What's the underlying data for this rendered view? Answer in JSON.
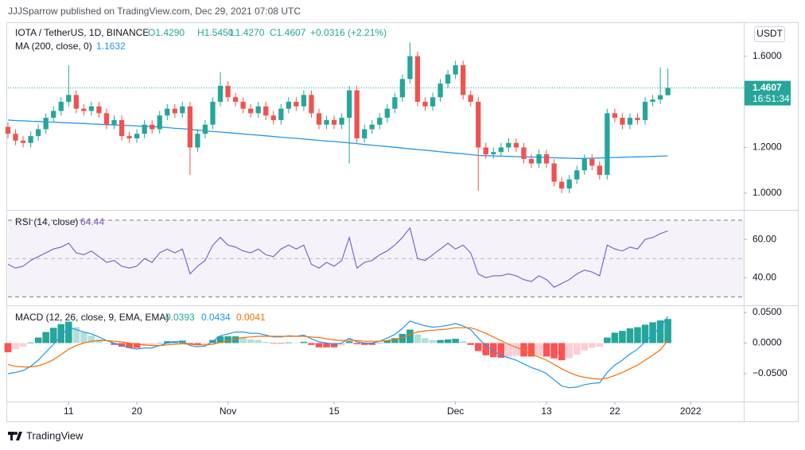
{
  "header": {
    "publisher": "JJJSparrow published on TradingView.com, Dec 29, 2021 07:08 UTC",
    "currency_button": "USDT",
    "footer_brand": "TradingView"
  },
  "chart_data": {
    "type": "candlestick",
    "symbol": "IOTA / TetherUS, 1D, BINANCE",
    "legend_values": [
      "O1.4290",
      "H1.5450",
      "L1.4270",
      "C1.4607",
      "+0.0316 (+2.21%)"
    ],
    "up_color": "#26a69a",
    "down_color": "#ef5350",
    "x": [
      "2021-10-03",
      "2021-10-04",
      "2021-10-05",
      "2021-10-06",
      "2021-10-07",
      "2021-10-08",
      "2021-10-09",
      "2021-10-10",
      "2021-10-11",
      "2021-10-12",
      "2021-10-13",
      "2021-10-14",
      "2021-10-15",
      "2021-10-16",
      "2021-10-17",
      "2021-10-18",
      "2021-10-19",
      "2021-10-20",
      "2021-10-21",
      "2021-10-22",
      "2021-10-23",
      "2021-10-24",
      "2021-10-25",
      "2021-10-26",
      "2021-10-27",
      "2021-10-28",
      "2021-10-29",
      "2021-10-30",
      "2021-10-31",
      "2021-11-01",
      "2021-11-02",
      "2021-11-03",
      "2021-11-04",
      "2021-11-05",
      "2021-11-06",
      "2021-11-07",
      "2021-11-08",
      "2021-11-09",
      "2021-11-10",
      "2021-11-11",
      "2021-11-12",
      "2021-11-13",
      "2021-11-14",
      "2021-11-15",
      "2021-11-16",
      "2021-11-17",
      "2021-11-18",
      "2021-11-19",
      "2021-11-20",
      "2021-11-21",
      "2021-11-22",
      "2021-11-23",
      "2021-11-24",
      "2021-11-25",
      "2021-11-26",
      "2021-11-27",
      "2021-11-28",
      "2021-11-29",
      "2021-11-30",
      "2021-12-01",
      "2021-12-02",
      "2021-12-03",
      "2021-12-04",
      "2021-12-05",
      "2021-12-06",
      "2021-12-07",
      "2021-12-08",
      "2021-12-09",
      "2021-12-10",
      "2021-12-11",
      "2021-12-12",
      "2021-12-13",
      "2021-12-14",
      "2021-12-15",
      "2021-12-16",
      "2021-12-17",
      "2021-12-18",
      "2021-12-19",
      "2021-12-20",
      "2021-12-21",
      "2021-12-22",
      "2021-12-23",
      "2021-12-24",
      "2021-12-25",
      "2021-12-26",
      "2021-12-27",
      "2021-12-28",
      "2021-12-29"
    ],
    "open": [
      1.29,
      1.26,
      1.23,
      1.22,
      1.25,
      1.28,
      1.33,
      1.36,
      1.4,
      1.43,
      1.37,
      1.36,
      1.38,
      1.35,
      1.3,
      1.32,
      1.25,
      1.24,
      1.26,
      1.3,
      1.28,
      1.34,
      1.37,
      1.35,
      1.38,
      1.2,
      1.26,
      1.3,
      1.4,
      1.47,
      1.42,
      1.4,
      1.37,
      1.35,
      1.38,
      1.34,
      1.32,
      1.37,
      1.4,
      1.38,
      1.43,
      1.35,
      1.3,
      1.32,
      1.3,
      1.33,
      1.45,
      1.24,
      1.28,
      1.3,
      1.33,
      1.37,
      1.42,
      1.5,
      1.6,
      1.4,
      1.38,
      1.42,
      1.48,
      1.52,
      1.56,
      1.43,
      1.4,
      1.2,
      1.17,
      1.18,
      1.2,
      1.22,
      1.2,
      1.15,
      1.13,
      1.17,
      1.13,
      1.05,
      1.02,
      1.06,
      1.1,
      1.15,
      1.12,
      1.08,
      1.35,
      1.33,
      1.3,
      1.33,
      1.32,
      1.4,
      1.41,
      1.429
    ],
    "high": [
      1.31,
      1.28,
      1.25,
      1.27,
      1.3,
      1.35,
      1.38,
      1.42,
      1.56,
      1.45,
      1.39,
      1.4,
      1.4,
      1.37,
      1.34,
      1.34,
      1.27,
      1.28,
      1.32,
      1.32,
      1.36,
      1.39,
      1.39,
      1.4,
      1.4,
      1.28,
      1.32,
      1.42,
      1.53,
      1.49,
      1.44,
      1.42,
      1.39,
      1.4,
      1.4,
      1.36,
      1.39,
      1.42,
      1.42,
      1.45,
      1.45,
      1.37,
      1.34,
      1.34,
      1.35,
      1.47,
      1.47,
      1.3,
      1.32,
      1.35,
      1.39,
      1.44,
      1.52,
      1.66,
      1.62,
      1.42,
      1.44,
      1.5,
      1.54,
      1.58,
      1.58,
      1.45,
      1.42,
      1.22,
      1.2,
      1.22,
      1.24,
      1.24,
      1.22,
      1.17,
      1.19,
      1.19,
      1.15,
      1.07,
      1.08,
      1.12,
      1.17,
      1.17,
      1.14,
      1.37,
      1.37,
      1.35,
      1.35,
      1.35,
      1.42,
      1.43,
      1.55,
      1.545
    ],
    "low": [
      1.24,
      1.21,
      1.2,
      1.2,
      1.23,
      1.26,
      1.31,
      1.34,
      1.38,
      1.35,
      1.34,
      1.34,
      1.33,
      1.28,
      1.28,
      1.23,
      1.22,
      1.22,
      1.24,
      1.26,
      1.26,
      1.32,
      1.33,
      1.33,
      1.08,
      1.18,
      1.24,
      1.28,
      1.38,
      1.4,
      1.38,
      1.35,
      1.33,
      1.33,
      1.32,
      1.3,
      1.3,
      1.35,
      1.36,
      1.36,
      1.33,
      1.28,
      1.28,
      1.28,
      1.28,
      1.13,
      1.22,
      1.22,
      1.26,
      1.28,
      1.31,
      1.35,
      1.4,
      1.48,
      1.38,
      1.36,
      1.36,
      1.4,
      1.46,
      1.5,
      1.41,
      1.38,
      1.01,
      1.15,
      1.15,
      1.16,
      1.18,
      1.18,
      1.13,
      1.11,
      1.11,
      1.11,
      1.03,
      1.0,
      1.0,
      1.04,
      1.08,
      1.1,
      1.06,
      1.06,
      1.31,
      1.28,
      1.28,
      1.3,
      1.3,
      1.38,
      1.39,
      1.427
    ],
    "close": [
      1.26,
      1.23,
      1.22,
      1.25,
      1.28,
      1.33,
      1.36,
      1.4,
      1.43,
      1.37,
      1.36,
      1.38,
      1.35,
      1.3,
      1.32,
      1.25,
      1.24,
      1.26,
      1.3,
      1.28,
      1.34,
      1.37,
      1.35,
      1.38,
      1.2,
      1.26,
      1.3,
      1.4,
      1.47,
      1.42,
      1.4,
      1.37,
      1.35,
      1.38,
      1.34,
      1.32,
      1.37,
      1.4,
      1.38,
      1.43,
      1.35,
      1.3,
      1.32,
      1.3,
      1.33,
      1.45,
      1.24,
      1.28,
      1.3,
      1.33,
      1.37,
      1.42,
      1.5,
      1.6,
      1.4,
      1.38,
      1.42,
      1.48,
      1.52,
      1.56,
      1.43,
      1.4,
      1.2,
      1.17,
      1.18,
      1.2,
      1.22,
      1.2,
      1.15,
      1.13,
      1.17,
      1.13,
      1.05,
      1.02,
      1.06,
      1.1,
      1.15,
      1.12,
      1.08,
      1.35,
      1.33,
      1.3,
      1.33,
      1.32,
      1.4,
      1.41,
      1.429,
      1.4607
    ],
    "xlim": [
      "2021-10-03",
      "2022-01-08"
    ],
    "xticks": [
      {
        "value": "2021-10-11",
        "label": "11"
      },
      {
        "value": "2021-10-20",
        "label": "20"
      },
      {
        "value": "2021-11-01",
        "label": "Nov"
      },
      {
        "value": "2021-11-15",
        "label": "15"
      },
      {
        "value": "2021-12-01",
        "label": "Dec"
      },
      {
        "value": "2021-12-13",
        "label": "13"
      },
      {
        "value": "2021-12-22",
        "label": "22"
      },
      {
        "value": "2022-01-01",
        "label": "2022"
      }
    ],
    "ylim": [
      0.93,
      1.745
    ],
    "yticks": [
      {
        "value": 1.6,
        "label": "1.6000"
      },
      {
        "value": 1.2,
        "label": "1.2000"
      },
      {
        "value": 1.0,
        "label": "1.0000"
      }
    ],
    "last_price_label": "1.4607",
    "countdown": "16:51:34",
    "overlays": [
      {
        "name": "MA (200, close, 0)",
        "value_label": "1.1632",
        "color": "#2196f3",
        "values": [
          1.32,
          1.318,
          1.317,
          1.315,
          1.314,
          1.312,
          1.311,
          1.309,
          1.308,
          1.306,
          1.305,
          1.303,
          1.302,
          1.3,
          1.299,
          1.297,
          1.296,
          1.294,
          1.293,
          1.291,
          1.29,
          1.287,
          1.284,
          1.282,
          1.279,
          1.276,
          1.273,
          1.27,
          1.268,
          1.265,
          1.262,
          1.259,
          1.256,
          1.254,
          1.251,
          1.248,
          1.245,
          1.242,
          1.24,
          1.237,
          1.234,
          1.231,
          1.228,
          1.226,
          1.223,
          1.22,
          1.217,
          1.213,
          1.21,
          1.207,
          1.204,
          1.201,
          1.197,
          1.194,
          1.191,
          1.188,
          1.185,
          1.181,
          1.178,
          1.175,
          1.172,
          1.169,
          1.165,
          1.164,
          1.163,
          1.162,
          1.161,
          1.16,
          1.159,
          1.158,
          1.157,
          1.156,
          1.155,
          1.154,
          1.153,
          1.152,
          1.152,
          1.153,
          1.154,
          1.155,
          1.156,
          1.157,
          1.158,
          1.159,
          1.16,
          1.161,
          1.162,
          1.1632
        ]
      }
    ],
    "panes": [
      {
        "type": "line",
        "name": "RSI (14, close)",
        "ylim": [
          26,
          75
        ],
        "yticks": [
          {
            "value": 60,
            "label": "60.00"
          },
          {
            "value": 40,
            "label": "40.00"
          }
        ],
        "bands": [
          70,
          50,
          30
        ],
        "band_color": "#7e57c2",
        "series": [
          {
            "value_label": "64.44",
            "color": "#7e57c2",
            "values": [
              47,
              45,
              46,
              49,
              51,
              53,
              55,
              56,
              58,
              53,
              52,
              54,
              51,
              48,
              49,
              46,
              45,
              46,
              50,
              48,
              53,
              55,
              53,
              55,
              42,
              46,
              49,
              57,
              61,
              57,
              56,
              54,
              53,
              55,
              52,
              51,
              55,
              57,
              55,
              57,
              47,
              45,
              48,
              46,
              49,
              61,
              45,
              48,
              49,
              52,
              54,
              57,
              61,
              66,
              50,
              49,
              52,
              55,
              58,
              55,
              57,
              53,
              42,
              40,
              41,
              41,
              42,
              41,
              39,
              38,
              41,
              39,
              35,
              37,
              39,
              42,
              44,
              43,
              41,
              57,
              55,
              54,
              56,
              55,
              60,
              61,
              63,
              64.44
            ]
          }
        ]
      },
      {
        "type": "macd",
        "name": "MACD (12, 26, close, 9, EMA, EMA)",
        "ylim": [
          -0.0955,
          0.0604
        ],
        "yticks": [
          {
            "value": 0.05,
            "label": "0.0500"
          },
          {
            "value": 0,
            "label": "0.0000"
          },
          {
            "value": -0.05,
            "label": "−0.0500"
          }
        ],
        "histogram": {
          "value_label": "0.0393",
          "colors": [
            "#26a69a",
            "#b2dfdb",
            "#ff5252",
            "#ffcdd2"
          ],
          "values": [
            -0.015,
            -0.01,
            -0.006,
            0.001,
            0.009,
            0.018,
            0.025,
            0.031,
            0.035,
            0.026,
            0.018,
            0.012,
            0.006,
            0.0,
            -0.003,
            -0.006,
            -0.008,
            -0.008,
            -0.005,
            -0.004,
            0.0,
            0.003,
            0.003,
            0.004,
            -0.002,
            -0.003,
            -0.002,
            0.005,
            0.011,
            0.011,
            0.011,
            0.009,
            0.006,
            0.005,
            0.002,
            -0.001,
            -0.001,
            0.001,
            0.0,
            0.002,
            -0.003,
            -0.007,
            -0.007,
            -0.007,
            -0.004,
            0.003,
            -0.002,
            -0.003,
            -0.003,
            0.0,
            0.004,
            0.008,
            0.015,
            0.022,
            0.014,
            0.008,
            0.005,
            0.005,
            0.006,
            0.007,
            0.003,
            -0.003,
            -0.013,
            -0.02,
            -0.023,
            -0.024,
            -0.022,
            -0.021,
            -0.022,
            -0.022,
            -0.021,
            -0.022,
            -0.025,
            -0.028,
            -0.025,
            -0.019,
            -0.012,
            -0.008,
            -0.006,
            0.009,
            0.017,
            0.02,
            0.024,
            0.026,
            0.03,
            0.034,
            0.037,
            0.0393
          ]
        },
        "series": [
          {
            "value_label": "0.0434",
            "color": "#2196f3",
            "values": [
              -0.05,
              -0.048,
              -0.045,
              -0.038,
              -0.028,
              -0.015,
              -0.002,
              0.012,
              0.025,
              0.022,
              0.018,
              0.015,
              0.01,
              0.004,
              0.0,
              -0.004,
              -0.008,
              -0.01,
              -0.008,
              -0.008,
              -0.004,
              0.0,
              0.001,
              0.003,
              -0.004,
              -0.006,
              -0.005,
              0.003,
              0.012,
              0.015,
              0.018,
              0.018,
              0.016,
              0.016,
              0.013,
              0.01,
              0.01,
              0.012,
              0.011,
              0.013,
              0.007,
              0.002,
              0.0,
              -0.002,
              0.0,
              0.008,
              0.002,
              0.0,
              0.0,
              0.003,
              0.008,
              0.014,
              0.024,
              0.036,
              0.032,
              0.028,
              0.026,
              0.027,
              0.029,
              0.032,
              0.028,
              0.022,
              0.008,
              -0.004,
              -0.013,
              -0.02,
              -0.024,
              -0.028,
              -0.034,
              -0.04,
              -0.044,
              -0.05,
              -0.06,
              -0.07,
              -0.073,
              -0.072,
              -0.068,
              -0.066,
              -0.065,
              -0.048,
              -0.036,
              -0.028,
              -0.018,
              -0.01,
              0.002,
              0.014,
              0.026,
              0.0434
            ]
          },
          {
            "value_label": "0.0041",
            "color": "#ff6d00",
            "values": [
              -0.035,
              -0.038,
              -0.039,
              -0.039,
              -0.037,
              -0.033,
              -0.027,
              -0.019,
              -0.01,
              -0.004,
              0.0,
              0.003,
              0.004,
              0.004,
              0.003,
              0.002,
              0.0,
              -0.002,
              -0.003,
              -0.004,
              -0.004,
              -0.003,
              -0.002,
              -0.001,
              -0.002,
              -0.003,
              -0.003,
              -0.002,
              0.001,
              0.004,
              0.007,
              0.009,
              0.01,
              0.011,
              0.011,
              0.011,
              0.011,
              0.011,
              0.011,
              0.011,
              0.01,
              0.009,
              0.007,
              0.005,
              0.004,
              0.005,
              0.004,
              0.003,
              0.003,
              0.003,
              0.004,
              0.006,
              0.009,
              0.014,
              0.018,
              0.02,
              0.021,
              0.022,
              0.023,
              0.025,
              0.025,
              0.025,
              0.021,
              0.016,
              0.01,
              0.004,
              -0.002,
              -0.007,
              -0.012,
              -0.018,
              -0.023,
              -0.028,
              -0.035,
              -0.042,
              -0.048,
              -0.053,
              -0.056,
              -0.058,
              -0.059,
              -0.057,
              -0.053,
              -0.048,
              -0.042,
              -0.036,
              -0.028,
              -0.02,
              -0.011,
              0.0041
            ]
          }
        ]
      }
    ]
  }
}
